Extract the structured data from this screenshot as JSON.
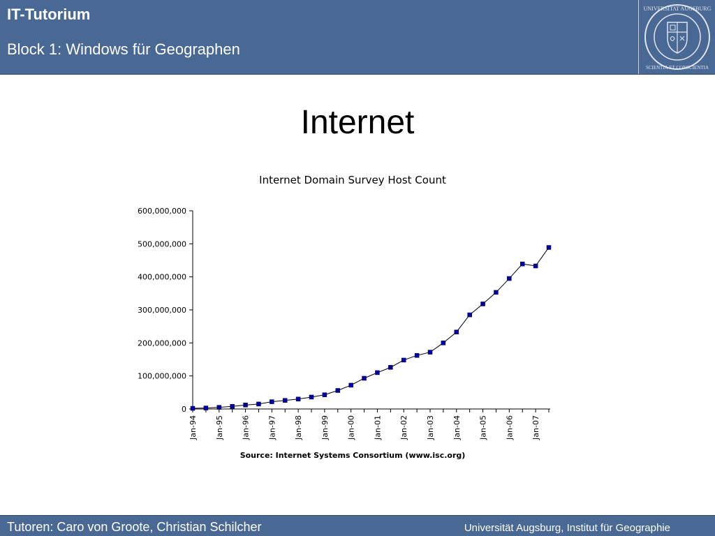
{
  "header": {
    "title": "IT-Tutorium",
    "subtitle": "Block 1: Windows für Geographen",
    "seal_text_top": "UNIVERSITAT AUGSBURG",
    "seal_text_bottom": "SCIENTIA ET CONSCIENTIA"
  },
  "slide": {
    "title": "Internet"
  },
  "footer": {
    "left": "Tutoren: Caro von Groote, Christian Schilcher",
    "right": "Universität Augsburg, Institut für Geographie"
  },
  "colors": {
    "header_bg": "#4a6894",
    "marker": "#0000a0",
    "line": "#000000"
  },
  "chart_data": {
    "type": "line",
    "title": "Internet Domain Survey Host Count",
    "source": "Source: Internet Systems Consortium (www.isc.org)",
    "ylim": [
      0,
      600000000
    ],
    "y_ticks": [
      0,
      100000000,
      200000000,
      300000000,
      400000000,
      500000000,
      600000000
    ],
    "y_tick_labels": [
      "0",
      "100,000,000",
      "200,000,000",
      "300,000,000",
      "400,000,000",
      "500,000,000",
      "600,000,000"
    ],
    "x_tick_labels": [
      "Jan-94",
      "Jan-95",
      "Jan-96",
      "Jan-97",
      "Jan-98",
      "Jan-99",
      "Jan-00",
      "Jan-01",
      "Jan-02",
      "Jan-03",
      "Jan-04",
      "Jan-05",
      "Jan-06",
      "Jan-07"
    ],
    "x": [
      "Jan-94",
      "Jul-94",
      "Jan-95",
      "Jul-95",
      "Jan-96",
      "Jul-96",
      "Jan-97",
      "Jul-97",
      "Jan-98",
      "Jul-98",
      "Jan-99",
      "Jul-99",
      "Jan-00",
      "Jul-00",
      "Jan-01",
      "Jul-01",
      "Jan-02",
      "Jul-02",
      "Jan-03",
      "Jul-03",
      "Jan-04",
      "Jul-04",
      "Jan-05",
      "Jul-05",
      "Jan-06",
      "Jul-06",
      "Jan-07",
      "Jul-07"
    ],
    "series": [
      {
        "values": [
          2000000,
          3000000,
          5000000,
          8000000,
          12000000,
          15000000,
          22000000,
          26000000,
          30000000,
          36000000,
          43000000,
          56000000,
          72000000,
          93000000,
          110000000,
          126000000,
          148000000,
          162000000,
          172000000,
          200000000,
          233000000,
          285000000,
          318000000,
          353000000,
          395000000,
          439000000,
          433000000,
          489000000
        ]
      }
    ],
    "grid": false,
    "legend": "none"
  }
}
